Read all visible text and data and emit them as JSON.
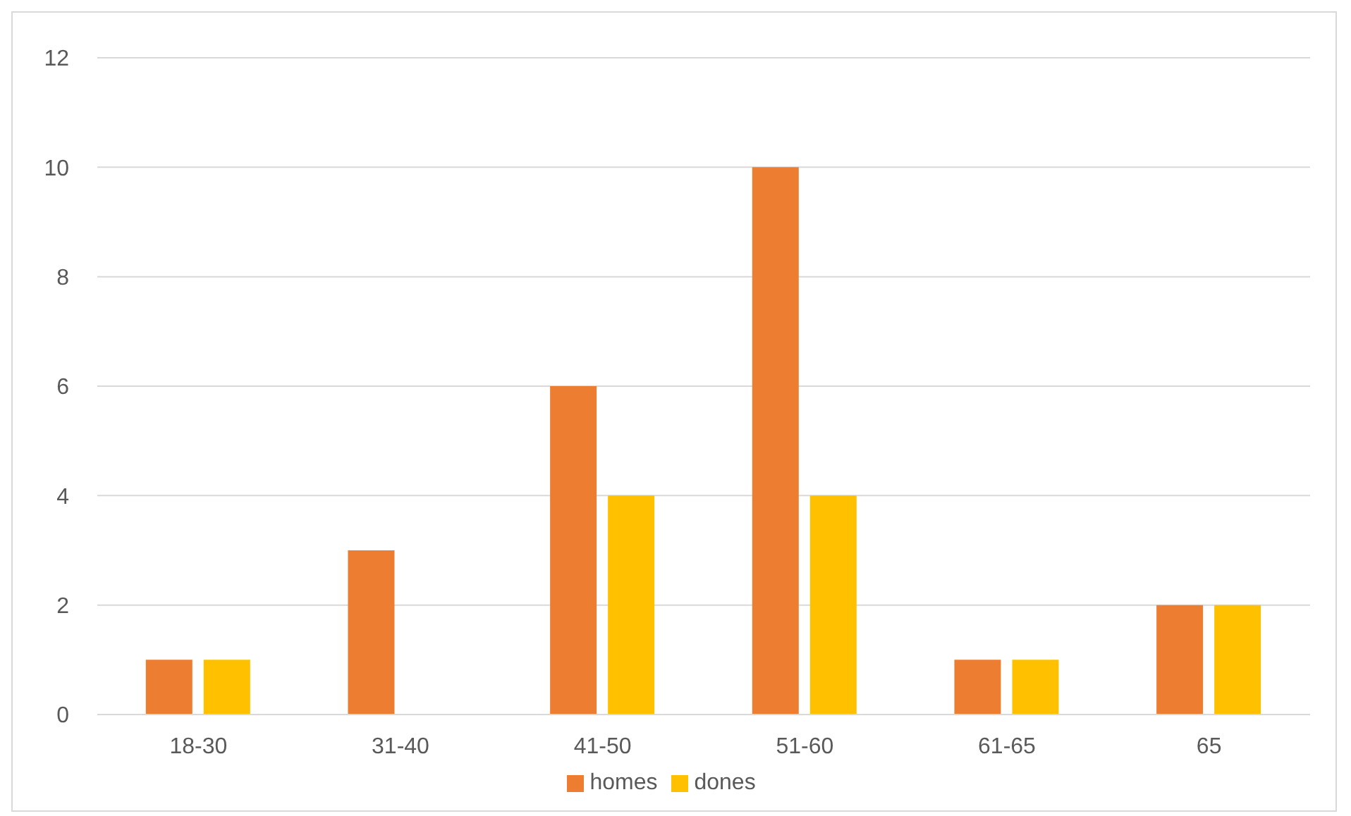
{
  "chart_data": {
    "type": "bar",
    "categories": [
      "18-30",
      "31-40",
      "41-50",
      "51-60",
      "61-65",
      "65"
    ],
    "series": [
      {
        "name": "homes",
        "color": "#ed7d31",
        "values": [
          1,
          3,
          6,
          10,
          1,
          2
        ]
      },
      {
        "name": "dones",
        "color": "#ffc000",
        "values": [
          1,
          0,
          4,
          4,
          1,
          2
        ]
      }
    ],
    "ylim": [
      0,
      12
    ],
    "yticks": [
      0,
      2,
      4,
      6,
      8,
      10,
      12
    ],
    "grid": "y",
    "legend": "bottom"
  }
}
